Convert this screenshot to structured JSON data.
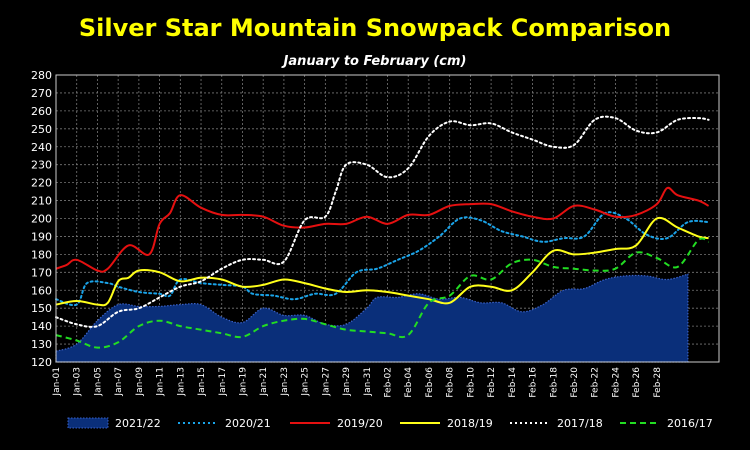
{
  "chart_data": {
    "type": "line",
    "title": "Silver Star Mountain Snowpack Comparison",
    "subtitle": "January to February  (cm)",
    "ylim": [
      120,
      280
    ],
    "yticks": [
      120,
      130,
      140,
      150,
      160,
      170,
      180,
      190,
      200,
      210,
      220,
      230,
      240,
      250,
      260,
      270,
      280
    ],
    "grid": true,
    "legend_position": "bottom",
    "background": "#000000",
    "x_labels": [
      "Jan-01",
      "Jan-03",
      "Jan-05",
      "Jan-07",
      "Jan-09",
      "Jan-11",
      "Jan-13",
      "Jan-15",
      "Jan-17",
      "Jan-19",
      "Jan-21",
      "Jan-23",
      "Jan-25",
      "Jan-27",
      "Jan-29",
      "Jan-31",
      "Feb-02",
      "Feb-04",
      "Feb-06",
      "Feb-08",
      "Feb-10",
      "Feb-12",
      "Feb-14",
      "Feb-16",
      "Feb-18",
      "Feb-20",
      "Feb-22",
      "Feb-24",
      "Feb-26",
      "Feb-28"
    ],
    "series": [
      {
        "name": "2021/22",
        "style": "area",
        "color": "#0a2f7a",
        "edge": "#3a62c8",
        "points": [
          [
            0,
            126
          ],
          [
            2,
            130
          ],
          [
            4,
            143
          ],
          [
            6,
            152
          ],
          [
            8,
            151
          ],
          [
            10,
            151
          ],
          [
            12,
            152
          ],
          [
            14,
            152
          ],
          [
            16,
            145
          ],
          [
            18,
            142
          ],
          [
            20,
            150
          ],
          [
            22,
            146
          ],
          [
            24,
            146
          ],
          [
            26,
            141
          ],
          [
            28,
            141
          ],
          [
            30,
            150
          ],
          [
            31,
            156
          ],
          [
            33,
            156
          ],
          [
            35,
            158
          ],
          [
            37,
            155
          ],
          [
            39,
            156
          ],
          [
            41,
            153
          ],
          [
            43,
            153
          ],
          [
            45,
            148
          ],
          [
            47,
            152
          ],
          [
            49,
            160
          ],
          [
            51,
            161
          ],
          [
            53,
            166
          ],
          [
            55,
            168
          ],
          [
            57,
            168
          ],
          [
            59,
            166
          ],
          [
            61,
            169
          ]
        ]
      },
      {
        "name": "2020/21",
        "style": "dotted",
        "color": "#1aa3e8",
        "points": [
          [
            0,
            155
          ],
          [
            2,
            152
          ],
          [
            3,
            164
          ],
          [
            5,
            164
          ],
          [
            6,
            162
          ],
          [
            8,
            159
          ],
          [
            10,
            158
          ],
          [
            11,
            157
          ],
          [
            12,
            166
          ],
          [
            14,
            164
          ],
          [
            16,
            163
          ],
          [
            18,
            162
          ],
          [
            19,
            158
          ],
          [
            21,
            157
          ],
          [
            23,
            155
          ],
          [
            25,
            158
          ],
          [
            27,
            158
          ],
          [
            29,
            170
          ],
          [
            31,
            172
          ],
          [
            33,
            177
          ],
          [
            35,
            182
          ],
          [
            37,
            190
          ],
          [
            39,
            200
          ],
          [
            41,
            199
          ],
          [
            43,
            193
          ],
          [
            45,
            190
          ],
          [
            47,
            187
          ],
          [
            49,
            189
          ],
          [
            51,
            190
          ],
          [
            53,
            203
          ],
          [
            55,
            200
          ],
          [
            57,
            191
          ],
          [
            59,
            189
          ],
          [
            61,
            198
          ],
          [
            63,
            198
          ]
        ]
      },
      {
        "name": "2019/20",
        "style": "solid",
        "color": "#e51010",
        "points": [
          [
            0,
            172
          ],
          [
            1,
            174
          ],
          [
            2,
            177
          ],
          [
            4,
            171
          ],
          [
            5,
            172
          ],
          [
            7,
            185
          ],
          [
            9,
            180
          ],
          [
            10,
            197
          ],
          [
            11,
            203
          ],
          [
            12,
            213
          ],
          [
            14,
            206
          ],
          [
            16,
            202
          ],
          [
            18,
            202
          ],
          [
            20,
            201
          ],
          [
            22,
            196
          ],
          [
            24,
            195
          ],
          [
            26,
            197
          ],
          [
            28,
            197
          ],
          [
            30,
            201
          ],
          [
            32,
            197
          ],
          [
            34,
            202
          ],
          [
            36,
            202
          ],
          [
            38,
            207
          ],
          [
            40,
            208
          ],
          [
            42,
            208
          ],
          [
            44,
            204
          ],
          [
            46,
            201
          ],
          [
            48,
            200
          ],
          [
            50,
            207
          ],
          [
            52,
            205
          ],
          [
            54,
            201
          ],
          [
            56,
            202
          ],
          [
            58,
            208
          ],
          [
            59,
            217
          ],
          [
            60,
            213
          ],
          [
            62,
            210
          ],
          [
            63,
            207
          ]
        ]
      },
      {
        "name": "2018/19",
        "style": "solid",
        "color": "#ffff1a",
        "points": [
          [
            0,
            152
          ],
          [
            2,
            154
          ],
          [
            4,
            152
          ],
          [
            5,
            153
          ],
          [
            6,
            165
          ],
          [
            7,
            167
          ],
          [
            8,
            171
          ],
          [
            10,
            170
          ],
          [
            12,
            165
          ],
          [
            14,
            167
          ],
          [
            16,
            166
          ],
          [
            18,
            162
          ],
          [
            20,
            163
          ],
          [
            22,
            166
          ],
          [
            24,
            164
          ],
          [
            26,
            161
          ],
          [
            28,
            159
          ],
          [
            30,
            160
          ],
          [
            32,
            159
          ],
          [
            34,
            157
          ],
          [
            36,
            155
          ],
          [
            38,
            153
          ],
          [
            40,
            162
          ],
          [
            42,
            162
          ],
          [
            44,
            160
          ],
          [
            46,
            170
          ],
          [
            48,
            182
          ],
          [
            50,
            180
          ],
          [
            52,
            181
          ],
          [
            54,
            183
          ],
          [
            56,
            185
          ],
          [
            58,
            200
          ],
          [
            60,
            195
          ],
          [
            62,
            190
          ],
          [
            63,
            189
          ]
        ]
      },
      {
        "name": "2017/18",
        "style": "dotted",
        "color": "#ffffff",
        "points": [
          [
            0,
            145
          ],
          [
            2,
            141
          ],
          [
            4,
            140
          ],
          [
            6,
            148
          ],
          [
            8,
            150
          ],
          [
            10,
            156
          ],
          [
            12,
            162
          ],
          [
            14,
            165
          ],
          [
            16,
            172
          ],
          [
            18,
            177
          ],
          [
            20,
            177
          ],
          [
            22,
            176
          ],
          [
            24,
            199
          ],
          [
            26,
            201
          ],
          [
            27,
            215
          ],
          [
            28,
            230
          ],
          [
            30,
            230
          ],
          [
            32,
            223
          ],
          [
            34,
            228
          ],
          [
            36,
            246
          ],
          [
            38,
            254
          ],
          [
            40,
            252
          ],
          [
            42,
            253
          ],
          [
            44,
            248
          ],
          [
            46,
            244
          ],
          [
            48,
            240
          ],
          [
            50,
            241
          ],
          [
            52,
            255
          ],
          [
            54,
            256
          ],
          [
            56,
            249
          ],
          [
            58,
            248
          ],
          [
            60,
            255
          ],
          [
            62,
            256
          ],
          [
            63,
            255
          ]
        ]
      },
      {
        "name": "2016/17",
        "style": "dashed",
        "color": "#22dd22",
        "points": [
          [
            0,
            135
          ],
          [
            2,
            132
          ],
          [
            4,
            128
          ],
          [
            6,
            131
          ],
          [
            8,
            140
          ],
          [
            10,
            143
          ],
          [
            12,
            140
          ],
          [
            14,
            138
          ],
          [
            16,
            136
          ],
          [
            18,
            134
          ],
          [
            20,
            140
          ],
          [
            22,
            143
          ],
          [
            24,
            144
          ],
          [
            26,
            141
          ],
          [
            28,
            138
          ],
          [
            30,
            137
          ],
          [
            32,
            136
          ],
          [
            34,
            135
          ],
          [
            36,
            153
          ],
          [
            38,
            157
          ],
          [
            40,
            168
          ],
          [
            42,
            166
          ],
          [
            44,
            175
          ],
          [
            46,
            177
          ],
          [
            48,
            173
          ],
          [
            50,
            172
          ],
          [
            52,
            171
          ],
          [
            54,
            172
          ],
          [
            56,
            181
          ],
          [
            58,
            178
          ],
          [
            60,
            173
          ],
          [
            62,
            188
          ],
          [
            63,
            187
          ]
        ]
      }
    ]
  }
}
